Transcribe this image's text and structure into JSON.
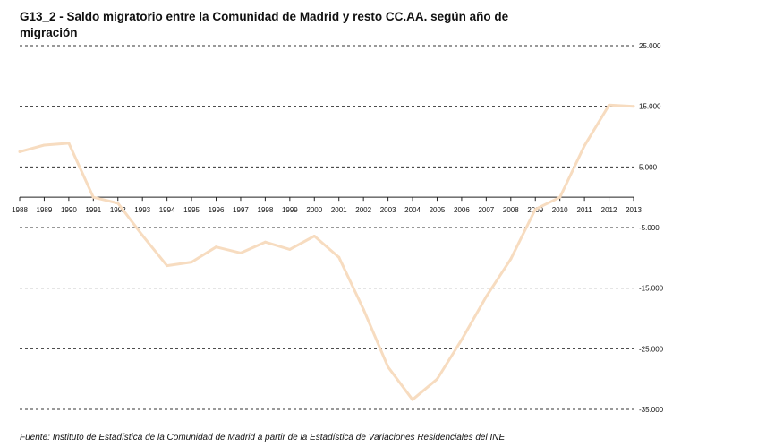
{
  "chart_data": {
    "type": "line",
    "title": "G13_2 - Saldo migratorio entre la Comunidad de Madrid y resto CC.AA. según año de migración",
    "source": "Fuente: Instituto de Estadística de la Comunidad de Madrid a partir de la Estadística de Variaciones Residenciales del INE",
    "xlabel": "",
    "ylabel": "",
    "ylim": [
      -35000,
      25000
    ],
    "y_ticks": [
      25000,
      15000,
      5000,
      -5000,
      -15000,
      -25000,
      -35000
    ],
    "y_tick_labels": [
      "25.000",
      "15.000",
      "5.000",
      "-5.000",
      "-15.000",
      "-25.000",
      "-35.000"
    ],
    "x": [
      "1988",
      "1989",
      "1990",
      "1991",
      "1992",
      "1993",
      "1994",
      "1995",
      "1996",
      "1997",
      "1998",
      "1999",
      "2000",
      "2001",
      "2002",
      "2003",
      "2004",
      "2005",
      "2006",
      "2007",
      "2008",
      "2009",
      "2010",
      "2011",
      "2012",
      "2013"
    ],
    "series": [
      {
        "name": "Saldo migratorio",
        "color": "#f7dcc0",
        "values": [
          7500,
          8600,
          8900,
          0,
          -1000,
          -6300,
          -11300,
          -10700,
          -8200,
          -9200,
          -7400,
          -8600,
          -6400,
          -9900,
          -18500,
          -28000,
          -33400,
          -30000,
          -23500,
          -16400,
          -10200,
          -2000,
          0,
          8500,
          15200,
          15000
        ]
      }
    ],
    "grid": "dashed-horizontal"
  }
}
